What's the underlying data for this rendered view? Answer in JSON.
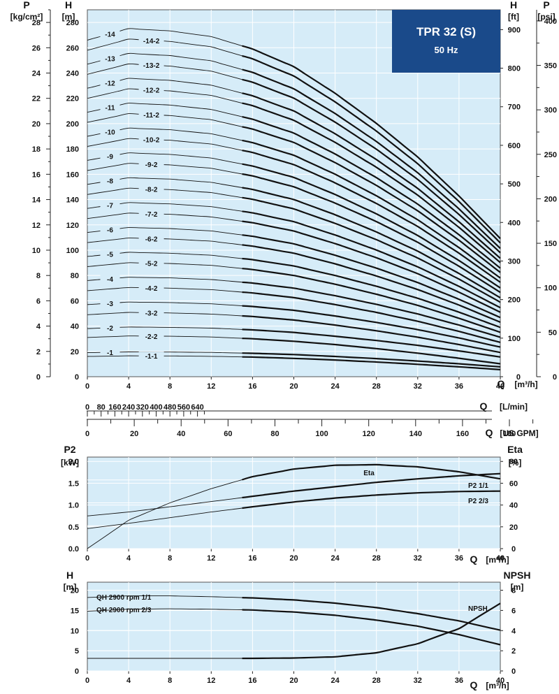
{
  "title_box": {
    "title": "TPR 32 (S)",
    "subtitle": "50 Hz",
    "fill": "#1a4a8a"
  },
  "colors": {
    "background": "#d6ecf8",
    "grid": "#ffffff",
    "curve": "#111111"
  },
  "chart_data": [
    {
      "type": "line",
      "title": "",
      "xlabel": "Q [m³/h]",
      "ylabel": "H [m]",
      "ylim": [
        0,
        290
      ],
      "xlim": [
        0,
        40
      ],
      "x_ticks": [
        0,
        4,
        8,
        12,
        16,
        20,
        24,
        28,
        32,
        36,
        40
      ],
      "y_ticks": [
        0,
        20,
        40,
        60,
        80,
        100,
        120,
        140,
        160,
        180,
        200,
        220,
        240,
        260,
        280
      ],
      "left_axis": {
        "name": "P",
        "unit": "[kg/cm²]",
        "ticks": [
          0,
          2,
          4,
          6,
          8,
          10,
          12,
          14,
          16,
          18,
          20,
          22,
          24,
          26,
          28
        ]
      },
      "right_axis_1": {
        "name": "H",
        "unit": "[ft]",
        "ticks": [
          0,
          100,
          200,
          300,
          400,
          500,
          600,
          700,
          800,
          900
        ]
      },
      "right_axis_2": {
        "name": "P",
        "unit": "[psi]",
        "ticks": [
          0,
          50,
          100,
          150,
          200,
          250,
          300,
          350,
          400
        ]
      },
      "secondary_x_1": {
        "label": "Q [L/min]",
        "ticks": [
          0,
          80,
          160,
          240,
          320,
          400,
          480,
          560,
          640
        ]
      },
      "secondary_x_2": {
        "label": "Q [US GPM]",
        "ticks": [
          0,
          20,
          40,
          60,
          80,
          100,
          120,
          140,
          160,
          180
        ]
      },
      "x": [
        0,
        4,
        8,
        12,
        16,
        20,
        24,
        28,
        32,
        36,
        40
      ],
      "series": [
        {
          "name": "-1",
          "values": [
            19.0,
            19.6,
            19.5,
            19.2,
            18.5,
            17.5,
            16.0,
            14.3,
            12.4,
            10.2,
            7.8
          ]
        },
        {
          "name": "-1-1",
          "values": [
            16.0,
            16.5,
            16.4,
            16.1,
            15.5,
            14.5,
            13.2,
            11.6,
            9.8,
            7.8,
            5.6
          ]
        },
        {
          "name": "-2",
          "values": [
            38,
            39.3,
            39,
            38.4,
            37,
            35,
            32,
            28.6,
            24.8,
            20.4,
            15.6
          ]
        },
        {
          "name": "-2-2",
          "values": [
            31,
            32.2,
            32,
            31.4,
            30,
            28,
            25.4,
            22.2,
            18.6,
            14.6,
            10.2
          ]
        },
        {
          "name": "-3",
          "values": [
            57,
            59,
            58.6,
            57.6,
            55.5,
            52.5,
            48,
            42.9,
            37.2,
            30.6,
            23.4
          ]
        },
        {
          "name": "-3-2",
          "values": [
            49,
            50.8,
            50.4,
            49.5,
            47.6,
            44.8,
            40.8,
            36.3,
            31.2,
            25.4,
            19.2
          ]
        },
        {
          "name": "-4",
          "values": [
            76,
            78.6,
            78.1,
            76.8,
            74,
            70,
            64,
            57.2,
            49.6,
            40.8,
            31.2
          ]
        },
        {
          "name": "-4-2",
          "values": [
            68,
            70.5,
            70,
            68.8,
            66.2,
            62.5,
            57,
            50.8,
            43.8,
            35.8,
            27.1
          ]
        },
        {
          "name": "-5",
          "values": [
            95,
            98.3,
            97.6,
            96,
            92.5,
            87.5,
            80,
            71.5,
            62,
            51,
            39
          ]
        },
        {
          "name": "-5-2",
          "values": [
            87,
            90.1,
            89.5,
            88,
            84.7,
            80,
            73.1,
            65.2,
            56.4,
            46.2,
            35.1
          ]
        },
        {
          "name": "-6",
          "values": [
            114,
            117.9,
            117.1,
            115.2,
            111,
            105,
            96,
            85.8,
            74.4,
            61.2,
            46.8
          ]
        },
        {
          "name": "-6-2",
          "values": [
            106,
            109.6,
            108.9,
            107.1,
            103.2,
            97.6,
            89.2,
            79.6,
            68.9,
            56.6,
            43.1
          ]
        },
        {
          "name": "-7",
          "values": [
            133,
            137.6,
            136.6,
            134.4,
            129.5,
            122.5,
            112,
            100.1,
            86.8,
            71.4,
            54.6
          ]
        },
        {
          "name": "-7-2",
          "values": [
            125,
            129.3,
            128.4,
            126.3,
            121.7,
            115.1,
            105.2,
            94,
            81.4,
            66.8,
            51
          ]
        },
        {
          "name": "-8",
          "values": [
            152,
            157.2,
            156.2,
            153.6,
            148,
            140,
            128,
            114.4,
            99.2,
            81.6,
            62.4
          ]
        },
        {
          "name": "-8-2",
          "values": [
            144,
            149,
            147.9,
            145.5,
            140.2,
            132.6,
            121.2,
            108.3,
            93.8,
            77.1,
            58.9
          ]
        },
        {
          "name": "-9",
          "values": [
            171,
            176.9,
            175.7,
            172.8,
            166.5,
            157.5,
            144,
            128.7,
            111.6,
            91.8,
            70.2
          ]
        },
        {
          "name": "-9-2",
          "values": [
            163,
            168.6,
            167.4,
            164.7,
            158.7,
            150.1,
            137.2,
            122.6,
            106.2,
            87.3,
            66.7
          ]
        },
        {
          "name": "-10",
          "values": [
            190,
            196.5,
            195.2,
            192,
            185,
            175,
            160,
            143,
            124,
            102,
            78
          ]
        },
        {
          "name": "-10-2",
          "values": [
            182,
            188.2,
            186.9,
            183.9,
            177.2,
            167.6,
            153.2,
            136.9,
            118.7,
            97.6,
            74.6
          ]
        },
        {
          "name": "-11",
          "values": [
            209,
            216.2,
            214.7,
            211.2,
            203.5,
            192.5,
            176,
            157.3,
            136.4,
            112.2,
            85.8
          ]
        },
        {
          "name": "-11-2",
          "values": [
            201,
            207.9,
            206.4,
            203.1,
            195.7,
            185.1,
            169.2,
            151.2,
            131.1,
            107.8,
            82.4
          ]
        },
        {
          "name": "-12",
          "values": [
            228,
            235.8,
            234.2,
            230.4,
            222,
            210,
            192,
            171.6,
            148.8,
            122.4,
            93.6
          ]
        },
        {
          "name": "-12-2",
          "values": [
            220,
            227.5,
            225.9,
            222.3,
            214.2,
            202.6,
            185.2,
            165.5,
            143.5,
            118,
            90.2
          ]
        },
        {
          "name": "-13",
          "values": [
            247,
            255.5,
            253.8,
            249.6,
            240.5,
            227.5,
            208,
            185.9,
            161.2,
            132.6,
            101.4
          ]
        },
        {
          "name": "-13-2",
          "values": [
            239,
            247.2,
            245.5,
            241.5,
            232.7,
            220.1,
            201.2,
            179.8,
            155.9,
            128.2,
            98
          ]
        },
        {
          "name": "-14",
          "values": [
            266,
            275.1,
            273.3,
            268.8,
            259,
            245,
            224,
            200.2,
            173.6,
            142.8,
            109.2
          ]
        },
        {
          "name": "-14-2",
          "values": [
            258,
            266.8,
            265,
            260.7,
            251.2,
            237.6,
            217.2,
            194.1,
            168.3,
            138.4,
            105.8
          ]
        }
      ]
    },
    {
      "type": "line",
      "title": "",
      "xlabel": "Q [m³/h]",
      "ylabel": "P2 [kW]",
      "ylim": [
        0,
        2.0
      ],
      "xlim": [
        0,
        40
      ],
      "x_ticks": [
        0,
        4,
        8,
        12,
        16,
        20,
        24,
        28,
        32,
        36,
        40
      ],
      "y_ticks": [
        0.0,
        0.5,
        1.0,
        1.5,
        2.0
      ],
      "right_axis": {
        "name": "Eta",
        "unit": "[%]",
        "ticks": [
          0,
          20,
          40,
          60,
          80
        ]
      },
      "x": [
        0,
        4,
        8,
        12,
        16,
        20,
        24,
        28,
        32,
        36,
        40
      ],
      "series": [
        {
          "name": "Eta",
          "axis": "right",
          "values": [
            0,
            26,
            42,
            55,
            66,
            73,
            76.5,
            77,
            75,
            70.5,
            64
          ]
        },
        {
          "name": "P2 1/1",
          "values": [
            0.75,
            0.84,
            0.96,
            1.08,
            1.2,
            1.32,
            1.42,
            1.52,
            1.6,
            1.67,
            1.72
          ]
        },
        {
          "name": "P2 2/3",
          "values": [
            0.46,
            0.58,
            0.71,
            0.84,
            0.96,
            1.07,
            1.16,
            1.23,
            1.28,
            1.31,
            1.32
          ]
        }
      ]
    },
    {
      "type": "line",
      "title": "",
      "xlabel": "Q [m³/h]",
      "ylabel": "H [m]",
      "ylim": [
        0,
        22
      ],
      "xlim": [
        0,
        40
      ],
      "x_ticks": [
        0,
        4,
        8,
        12,
        16,
        20,
        24,
        28,
        32,
        36,
        40
      ],
      "y_ticks": [
        0,
        5,
        10,
        15,
        20
      ],
      "right_axis": {
        "name": "NPSH",
        "unit": "[m]",
        "ticks": [
          0,
          2,
          4,
          6,
          8
        ]
      },
      "x": [
        0,
        4,
        8,
        12,
        16,
        20,
        24,
        28,
        32,
        36,
        40
      ],
      "series": [
        {
          "name": "QH 2900 rpm 1/1",
          "values": [
            18.2,
            18.6,
            18.6,
            18.4,
            18.1,
            17.6,
            16.8,
            15.7,
            14.2,
            12.4,
            10.1
          ]
        },
        {
          "name": "QH 2900 rpm 2/3",
          "values": [
            14.8,
            15.3,
            15.4,
            15.3,
            15.1,
            14.6,
            13.8,
            12.6,
            11.1,
            9.0,
            6.5
          ]
        },
        {
          "name": "NPSH",
          "axis": "right",
          "values": [
            1.25,
            1.25,
            1.25,
            1.25,
            1.25,
            1.28,
            1.4,
            1.8,
            2.7,
            4.2,
            6.7
          ]
        }
      ]
    }
  ]
}
